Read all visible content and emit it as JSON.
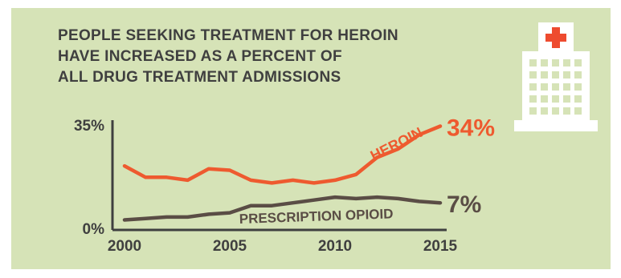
{
  "chart_data": {
    "type": "line",
    "title_lines": [
      "PEOPLE SEEKING TREATMENT FOR HEROIN",
      "HAVE INCREASED AS A PERCENT OF",
      "ALL DRUG TREATMENT ADMISSIONS"
    ],
    "x": [
      2000,
      2001,
      2002,
      2003,
      2004,
      2005,
      2006,
      2007,
      2008,
      2009,
      2010,
      2011,
      2012,
      2013,
      2014,
      2015
    ],
    "xticks": [
      "2000",
      "2005",
      "2010",
      "2015"
    ],
    "xlim": [
      2000,
      2015
    ],
    "ylim": [
      0,
      35
    ],
    "yticks": [
      "0%",
      "35%"
    ],
    "grid": false,
    "series": [
      {
        "name": "HEROIN",
        "color": "#ee5a2f",
        "values": [
          20,
          16,
          16,
          15,
          19,
          18.5,
          15,
          14,
          15,
          14,
          15,
          17,
          23,
          26,
          31,
          34
        ],
        "end_label": "34%"
      },
      {
        "name": "PRESCRIPTION OPIOID",
        "color": "#5a4d45",
        "values": [
          1,
          1.5,
          2,
          2,
          3,
          3.5,
          6,
          6,
          7,
          8,
          9,
          8.5,
          9,
          8.5,
          7.5,
          7
        ],
        "end_label": "7%"
      }
    ]
  },
  "icons": {
    "hospital": "hospital-building-icon",
    "cross_color": "#ee4b2f"
  },
  "colors": {
    "background": "#d6e3b7",
    "text": "#3f3f3f",
    "axis": "#3f3f3f"
  }
}
